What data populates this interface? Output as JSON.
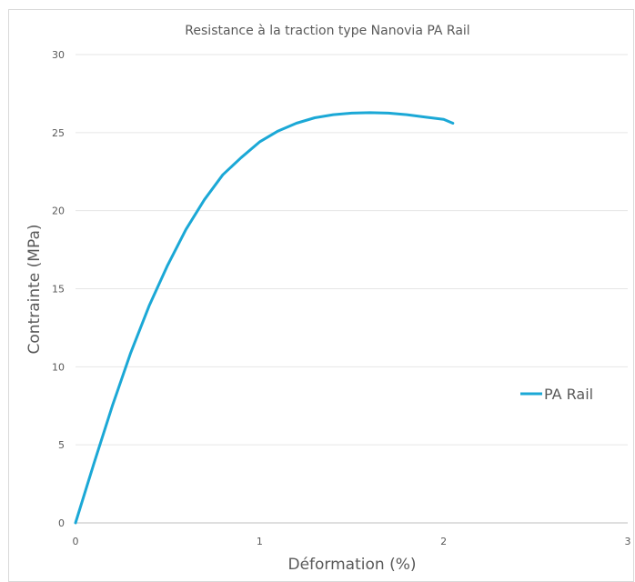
{
  "chart_data": {
    "type": "line",
    "title": "Resistance à la traction type Nanovia PA Rail",
    "xlabel": "Déformation (%)",
    "ylabel": "Contrainte  (MPa)",
    "xlim": [
      0,
      3
    ],
    "ylim": [
      0,
      30
    ],
    "x_ticks": [
      0,
      1,
      2,
      3
    ],
    "y_ticks": [
      0,
      5,
      10,
      15,
      20,
      25,
      30
    ],
    "grid": "horizontal",
    "legend_position": "right",
    "series": [
      {
        "name": "PA Rail",
        "color": "#1ba8d6",
        "x": [
          0,
          0.1,
          0.2,
          0.3,
          0.4,
          0.5,
          0.6,
          0.7,
          0.8,
          0.9,
          1.0,
          1.1,
          1.2,
          1.3,
          1.4,
          1.5,
          1.6,
          1.7,
          1.8,
          1.9,
          2.0,
          2.05
        ],
        "y": [
          0,
          3.8,
          7.5,
          10.9,
          13.9,
          16.5,
          18.8,
          20.7,
          22.3,
          23.4,
          24.4,
          25.1,
          25.6,
          25.95,
          26.15,
          26.25,
          26.28,
          26.25,
          26.15,
          26.0,
          25.85,
          25.6
        ]
      }
    ]
  }
}
